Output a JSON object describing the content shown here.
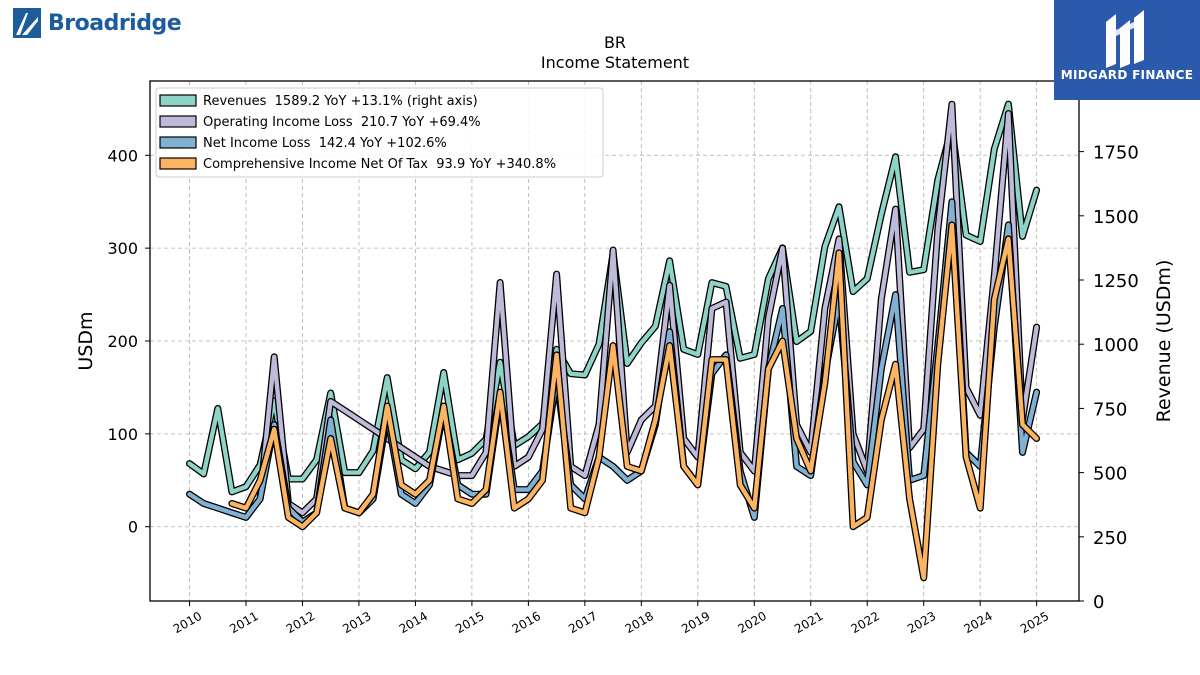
{
  "branding": {
    "left_logo_text": "Broadridge",
    "right_logo_text": "MIDGARD FINANCE",
    "left_logo_icon": "broadridge-mark-icon",
    "right_logo_icon": "midgard-m-icon",
    "right_logo_bg": "#2b5aad"
  },
  "chart_data": {
    "type": "line",
    "title": "BR",
    "subtitle": "Income Statement",
    "ylabel": "USDm",
    "ylabel_right": "Revenue (USDm)",
    "ylim": [
      -80,
      480
    ],
    "ylim_right": [
      0,
      2025
    ],
    "yticks": [
      0,
      100,
      200,
      300,
      400
    ],
    "yticks_right": [
      0,
      250,
      500,
      750,
      1000,
      1250,
      1500,
      1750
    ],
    "xlim": [
      2009.3,
      2025.75
    ],
    "xticks": [
      2010,
      2011,
      2012,
      2013,
      2014,
      2015,
      2016,
      2017,
      2018,
      2019,
      2020,
      2021,
      2022,
      2023,
      2024,
      2025
    ],
    "grid": true,
    "legend_position": "top-left",
    "series": [
      {
        "name": "Revenues  1589.2 YoY +13.1% (right axis)",
        "axis": "right",
        "color": "#8dd3c7",
        "x": [
          2010.0,
          2010.25,
          2010.5,
          2010.75,
          2011.0,
          2011.25,
          2011.5,
          2011.75,
          2012.0,
          2012.25,
          2012.5,
          2012.75,
          2013.0,
          2013.25,
          2013.5,
          2013.75,
          2014.0,
          2014.25,
          2014.5,
          2014.75,
          2015.0,
          2015.25,
          2015.5,
          2015.75,
          2016.0,
          2016.25,
          2016.5,
          2016.75,
          2017.0,
          2017.25,
          2017.5,
          2017.75,
          2018.0,
          2018.25,
          2018.5,
          2018.75,
          2019.0,
          2019.25,
          2019.5,
          2019.75,
          2020.0,
          2020.25,
          2020.5,
          2020.75,
          2021.0,
          2021.25,
          2021.5,
          2021.75,
          2022.0,
          2022.25,
          2022.5,
          2022.75,
          2023.0,
          2023.25,
          2023.5,
          2023.75,
          2024.0,
          2024.25,
          2024.5,
          2024.75,
          2025.0
        ],
        "y": [
          535,
          495,
          750,
          425,
          445,
          530,
          780,
          475,
          475,
          550,
          810,
          500,
          500,
          585,
          870,
          550,
          515,
          580,
          890,
          550,
          575,
          630,
          930,
          605,
          640,
          690,
          980,
          885,
          880,
          1000,
          1355,
          925,
          1005,
          1070,
          1325,
          980,
          960,
          1240,
          1225,
          945,
          960,
          1255,
          1375,
          1010,
          1050,
          1380,
          1535,
          1205,
          1255,
          1505,
          1730,
          1280,
          1290,
          1640,
          1845,
          1425,
          1400,
          1760,
          1935,
          1420,
          1600
        ]
      },
      {
        "name": "Operating Income Loss  210.7 YoY +69.4%",
        "axis": "left",
        "color": "#bebada",
        "x": [
          2011.25,
          2011.5,
          2011.75,
          2012.0,
          2012.25,
          2012.5,
          2012.75,
          2013.0,
          2013.25,
          2013.5,
          2013.75,
          2014.0,
          2014.25,
          2014.5,
          2014.75,
          2015.0,
          2015.25,
          2015.5,
          2015.75,
          2016.0,
          2016.25,
          2016.5,
          2016.75,
          2017.0,
          2017.25,
          2017.5,
          2017.75,
          2018.0,
          2018.25,
          2018.5,
          2018.75,
          2019.0,
          2019.25,
          2019.5,
          2019.75,
          2020.0,
          2020.25,
          2020.5,
          2020.75,
          2021.0,
          2021.25,
          2021.5,
          2021.75,
          2022.0,
          2022.25,
          2022.5,
          2022.75,
          2023.0,
          2023.25,
          2023.5,
          2023.75,
          2024.0,
          2024.25,
          2024.5,
          2024.75,
          2025.0
        ],
        "y": [
          30,
          183,
          25,
          15,
          30,
          135,
          125,
          115,
          105,
          95,
          85,
          75,
          65,
          60,
          55,
          55,
          80,
          263,
          65,
          75,
          105,
          272,
          65,
          55,
          110,
          298,
          80,
          115,
          130,
          260,
          95,
          75,
          235,
          242,
          80,
          60,
          225,
          300,
          110,
          80,
          235,
          310,
          100,
          60,
          245,
          342,
          85,
          105,
          320,
          455,
          150,
          120,
          270,
          445,
          115,
          215
        ]
      },
      {
        "name": "Net Income Loss  142.4 YoY +102.6%",
        "axis": "left",
        "color": "#80b1d3",
        "x": [
          2010.0,
          2010.25,
          2010.5,
          2010.75,
          2011.0,
          2011.25,
          2011.5,
          2011.75,
          2012.0,
          2012.25,
          2012.5,
          2012.75,
          2013.0,
          2013.25,
          2013.5,
          2013.75,
          2014.0,
          2014.25,
          2014.5,
          2014.75,
          2015.0,
          2015.25,
          2015.5,
          2015.75,
          2016.0,
          2016.25,
          2016.5,
          2016.75,
          2017.0,
          2017.25,
          2017.5,
          2017.75,
          2018.0,
          2018.25,
          2018.5,
          2018.75,
          2019.0,
          2019.25,
          2019.5,
          2019.75,
          2020.0,
          2020.25,
          2020.5,
          2020.75,
          2021.0,
          2021.25,
          2021.5,
          2021.75,
          2022.0,
          2022.25,
          2022.5,
          2022.75,
          2023.0,
          2023.25,
          2023.5,
          2023.75,
          2024.0,
          2024.25,
          2024.5,
          2024.75,
          2025.0
        ],
        "y": [
          35,
          25,
          20,
          15,
          10,
          30,
          110,
          20,
          5,
          15,
          115,
          20,
          15,
          30,
          120,
          35,
          25,
          45,
          125,
          45,
          35,
          35,
          140,
          40,
          40,
          60,
          160,
          45,
          30,
          75,
          65,
          50,
          60,
          110,
          210,
          65,
          45,
          165,
          185,
          60,
          10,
          170,
          235,
          65,
          55,
          165,
          245,
          70,
          45,
          170,
          250,
          50,
          55,
          195,
          350,
          80,
          65,
          215,
          325,
          80,
          145
        ]
      },
      {
        "name": "Comprehensive Income Net Of Tax  93.9 YoY +340.8%",
        "axis": "left",
        "color": "#fdb462",
        "x": [
          2010.75,
          2011.0,
          2011.25,
          2011.5,
          2011.75,
          2012.0,
          2012.25,
          2012.5,
          2012.75,
          2013.0,
          2013.25,
          2013.5,
          2013.75,
          2014.0,
          2014.25,
          2014.5,
          2014.75,
          2015.0,
          2015.25,
          2015.5,
          2015.75,
          2016.0,
          2016.25,
          2016.5,
          2016.75,
          2017.0,
          2017.25,
          2017.5,
          2017.75,
          2018.0,
          2018.25,
          2018.5,
          2018.75,
          2019.0,
          2019.25,
          2019.5,
          2019.75,
          2020.0,
          2020.25,
          2020.5,
          2020.75,
          2021.0,
          2021.25,
          2021.5,
          2021.75,
          2022.0,
          2022.25,
          2022.5,
          2022.75,
          2023.0,
          2023.25,
          2023.5,
          2023.75,
          2024.0,
          2024.25,
          2024.5,
          2024.75,
          2025.0
        ],
        "y": [
          25,
          20,
          50,
          105,
          10,
          0,
          15,
          95,
          20,
          15,
          35,
          130,
          45,
          35,
          50,
          130,
          30,
          25,
          40,
          145,
          20,
          30,
          50,
          185,
          20,
          15,
          75,
          195,
          65,
          60,
          115,
          195,
          65,
          45,
          180,
          180,
          45,
          20,
          170,
          200,
          95,
          60,
          155,
          295,
          0,
          10,
          115,
          175,
          30,
          -55,
          175,
          325,
          75,
          20,
          245,
          310,
          110,
          95
        ]
      }
    ]
  }
}
